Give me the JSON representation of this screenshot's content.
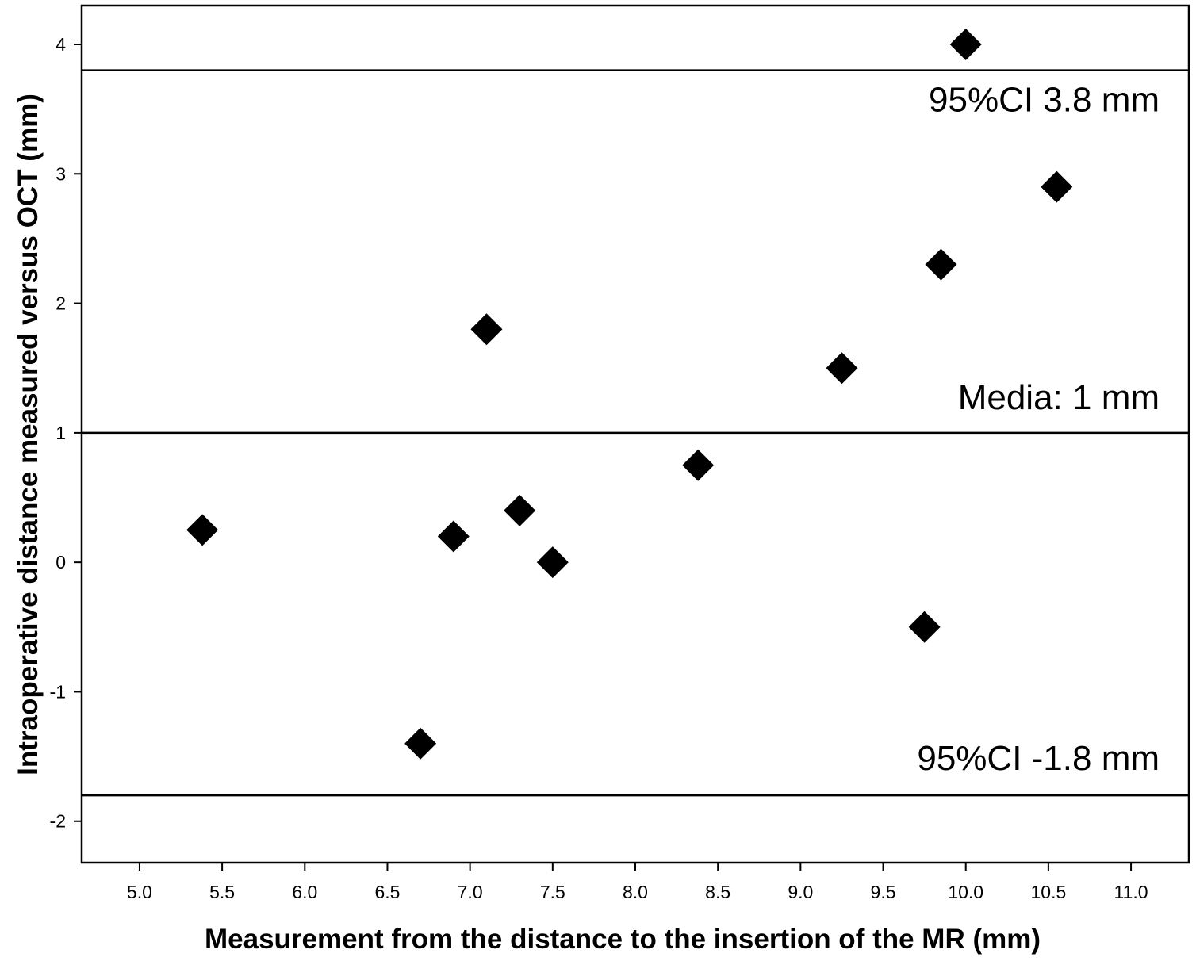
{
  "chart_data": {
    "type": "scatter",
    "title": "",
    "xlabel": "Measurement from the distance to the insertion of the MR (mm)",
    "ylabel": "Intraoperative distance measured versus OCT (mm)",
    "xlim": [
      4.65,
      11.35
    ],
    "ylim": [
      -2.32,
      4.3
    ],
    "x_ticks": [
      5.0,
      5.5,
      6.0,
      6.5,
      7.0,
      7.5,
      8.0,
      8.5,
      9.0,
      9.5,
      10.0,
      10.5,
      11.0
    ],
    "x_tick_labels": [
      "5.0",
      "5.5",
      "6.0",
      "6.5",
      "7.0",
      "7.5",
      "8.0",
      "8.5",
      "9.0",
      "9.5",
      "10.0",
      "10.5",
      "11.0"
    ],
    "y_ticks": [
      -2,
      -1,
      0,
      1,
      2,
      3,
      4
    ],
    "y_tick_labels": [
      "-2",
      "-1",
      "0",
      "1",
      "2",
      "3",
      "4"
    ],
    "grid": false,
    "marker": "diamond",
    "marker_color": "#000000",
    "points": [
      {
        "x": 5.38,
        "y": 0.25
      },
      {
        "x": 6.7,
        "y": -1.4
      },
      {
        "x": 6.9,
        "y": 0.2
      },
      {
        "x": 7.1,
        "y": 1.8
      },
      {
        "x": 7.3,
        "y": 0.4
      },
      {
        "x": 7.5,
        "y": 0.0
      },
      {
        "x": 8.38,
        "y": 0.75
      },
      {
        "x": 9.25,
        "y": 1.5
      },
      {
        "x": 9.75,
        "y": -0.5
      },
      {
        "x": 9.85,
        "y": 2.3
      },
      {
        "x": 10.0,
        "y": 4.0
      },
      {
        "x": 10.55,
        "y": 2.9
      }
    ],
    "reference_lines": [
      {
        "y": 3.8,
        "label": "95%CI 3.8 mm"
      },
      {
        "y": 1.0,
        "label": "Media: 1 mm"
      },
      {
        "y": -1.8,
        "label": "95%CI -1.8 mm"
      }
    ]
  }
}
